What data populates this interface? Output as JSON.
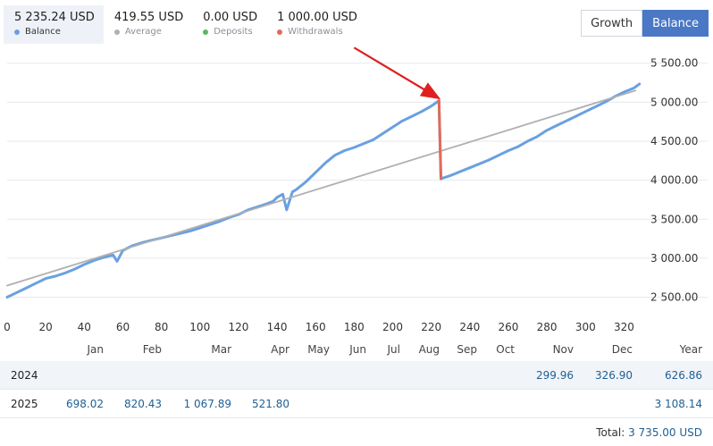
{
  "stats": [
    {
      "value": "5 235.24 USD",
      "label": "Balance",
      "color": "#6aa0e0",
      "active": true
    },
    {
      "value": "419.55 USD",
      "label": "Average",
      "color": "#b0b0b0",
      "active": false
    },
    {
      "value": "0.00 USD",
      "label": "Deposits",
      "color": "#5cb85c",
      "active": false
    },
    {
      "value": "1 000.00 USD",
      "label": "Withdrawals",
      "color": "#e26a5a",
      "active": false
    }
  ],
  "toggle": {
    "growth_label": "Growth",
    "balance_label": "Balance",
    "selected": "Balance"
  },
  "chart_data": {
    "type": "line",
    "x_ticks": [
      "0",
      "20",
      "40",
      "60",
      "80",
      "100",
      "120",
      "140",
      "160",
      "180",
      "200",
      "220",
      "240",
      "260",
      "280",
      "300",
      "320"
    ],
    "y_ticks": [
      "2 500.00",
      "3 000.00",
      "3 500.00",
      "4 000.00",
      "4 500.00",
      "5 000.00",
      "5 500.00"
    ],
    "xlim": [
      0,
      330
    ],
    "ylim": [
      2300,
      5600
    ],
    "series": [
      {
        "role": "balance",
        "color": "#6aa0e0",
        "points": [
          [
            0,
            2500
          ],
          [
            5,
            2560
          ],
          [
            10,
            2620
          ],
          [
            15,
            2680
          ],
          [
            20,
            2740
          ],
          [
            25,
            2770
          ],
          [
            30,
            2810
          ],
          [
            35,
            2860
          ],
          [
            40,
            2920
          ],
          [
            45,
            2970
          ],
          [
            50,
            3010
          ],
          [
            55,
            3040
          ],
          [
            57,
            2960
          ],
          [
            60,
            3100
          ],
          [
            65,
            3160
          ],
          [
            70,
            3200
          ],
          [
            75,
            3230
          ],
          [
            80,
            3260
          ],
          [
            85,
            3290
          ],
          [
            90,
            3320
          ],
          [
            95,
            3350
          ],
          [
            100,
            3390
          ],
          [
            105,
            3430
          ],
          [
            110,
            3470
          ],
          [
            115,
            3520
          ],
          [
            120,
            3560
          ],
          [
            125,
            3620
          ],
          [
            130,
            3660
          ],
          [
            135,
            3700
          ],
          [
            138,
            3730
          ],
          [
            140,
            3780
          ],
          [
            143,
            3820
          ],
          [
            145,
            3620
          ],
          [
            148,
            3850
          ],
          [
            150,
            3880
          ],
          [
            155,
            3980
          ],
          [
            160,
            4100
          ],
          [
            165,
            4220
          ],
          [
            170,
            4320
          ],
          [
            175,
            4380
          ],
          [
            180,
            4420
          ],
          [
            185,
            4470
          ],
          [
            190,
            4520
          ],
          [
            195,
            4600
          ],
          [
            200,
            4680
          ],
          [
            205,
            4760
          ],
          [
            210,
            4820
          ],
          [
            215,
            4880
          ],
          [
            220,
            4950
          ],
          [
            224,
            5020
          ],
          [
            225,
            4020
          ],
          [
            230,
            4060
          ],
          [
            235,
            4110
          ],
          [
            240,
            4160
          ],
          [
            245,
            4210
          ],
          [
            250,
            4260
          ],
          [
            255,
            4320
          ],
          [
            260,
            4380
          ],
          [
            265,
            4430
          ],
          [
            270,
            4500
          ],
          [
            275,
            4560
          ],
          [
            280,
            4640
          ],
          [
            285,
            4700
          ],
          [
            290,
            4760
          ],
          [
            295,
            4820
          ],
          [
            300,
            4880
          ],
          [
            305,
            4940
          ],
          [
            310,
            5000
          ],
          [
            315,
            5070
          ],
          [
            320,
            5130
          ],
          [
            325,
            5180
          ],
          [
            328,
            5235
          ]
        ]
      },
      {
        "role": "average",
        "color": "#b0b0b0",
        "points": [
          [
            0,
            2650
          ],
          [
            326,
            5150
          ]
        ]
      },
      {
        "role": "withdrawal",
        "color": "#e26a5a",
        "points": [
          [
            224,
            5020
          ],
          [
            225,
            4020
          ]
        ]
      }
    ],
    "annotation": {
      "type": "arrow",
      "color": "#e02020",
      "from": [
        180,
        5700
      ],
      "to": [
        224,
        5050
      ]
    },
    "grid": true
  },
  "table": {
    "months": [
      "Jan",
      "Feb",
      "Mar",
      "Apr",
      "May",
      "Jun",
      "Jul",
      "Aug",
      "Sep",
      "Oct",
      "Nov",
      "Dec"
    ],
    "year_header": "Year",
    "rows": [
      {
        "year": "2024",
        "cells": [
          "",
          "",
          "",
          "",
          "",
          "",
          "",
          "",
          "",
          "",
          "299.96",
          "326.90"
        ],
        "total": "626.86"
      },
      {
        "year": "2025",
        "cells": [
          "698.02",
          "820.43",
          "1 067.89",
          "521.80",
          "",
          "",
          "",
          "",
          "",
          "",
          "",
          ""
        ],
        "total": "3 108.14"
      }
    ],
    "total_label": "Total:",
    "total_value": "3 735.00 USD"
  }
}
